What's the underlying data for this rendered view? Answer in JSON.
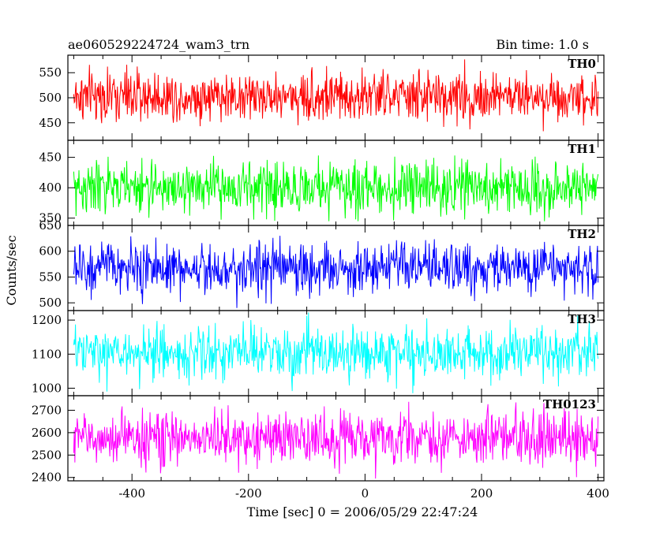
{
  "header": {
    "title": "ae060529224724_wam3_trn",
    "bin_time": "Bin time: 1.0 s"
  },
  "chart_data": {
    "type": "line",
    "xlabel": "Time [sec] 0 = 2006/05/29 22:47:24",
    "ylabel": "Counts/sec",
    "xlim": [
      -510,
      410
    ],
    "xticks": [
      -400,
      -200,
      0,
      200,
      400
    ],
    "x_range": [
      -500,
      400
    ],
    "bin": 1.0,
    "series": [
      {
        "name": "TH0",
        "color": "#ff0000",
        "ylim": [
          415,
          585
        ],
        "yticks": [
          450,
          500,
          550
        ],
        "mean": 503,
        "min": 430,
        "max": 585
      },
      {
        "name": "TH1",
        "color": "#00ff00",
        "ylim": [
          338,
          478
        ],
        "yticks": [
          350,
          400,
          450
        ],
        "mean": 400,
        "min": 345,
        "max": 476
      },
      {
        "name": "TH2",
        "color": "#0000ff",
        "ylim": [
          485,
          650
        ],
        "yticks": [
          500,
          550,
          600,
          650
        ],
        "mean": 567,
        "min": 490,
        "max": 645
      },
      {
        "name": "TH3",
        "color": "#00ffff",
        "ylim": [
          978,
          1228
        ],
        "yticks": [
          1000,
          1100,
          1200
        ],
        "mean": 1103,
        "min": 985,
        "max": 1225
      },
      {
        "name": "TH0123",
        "color": "#ff00ff",
        "ylim": [
          2385,
          2765
        ],
        "yticks": [
          2400,
          2500,
          2600,
          2700
        ],
        "mean": 2575,
        "min": 2395,
        "max": 2760
      }
    ]
  }
}
